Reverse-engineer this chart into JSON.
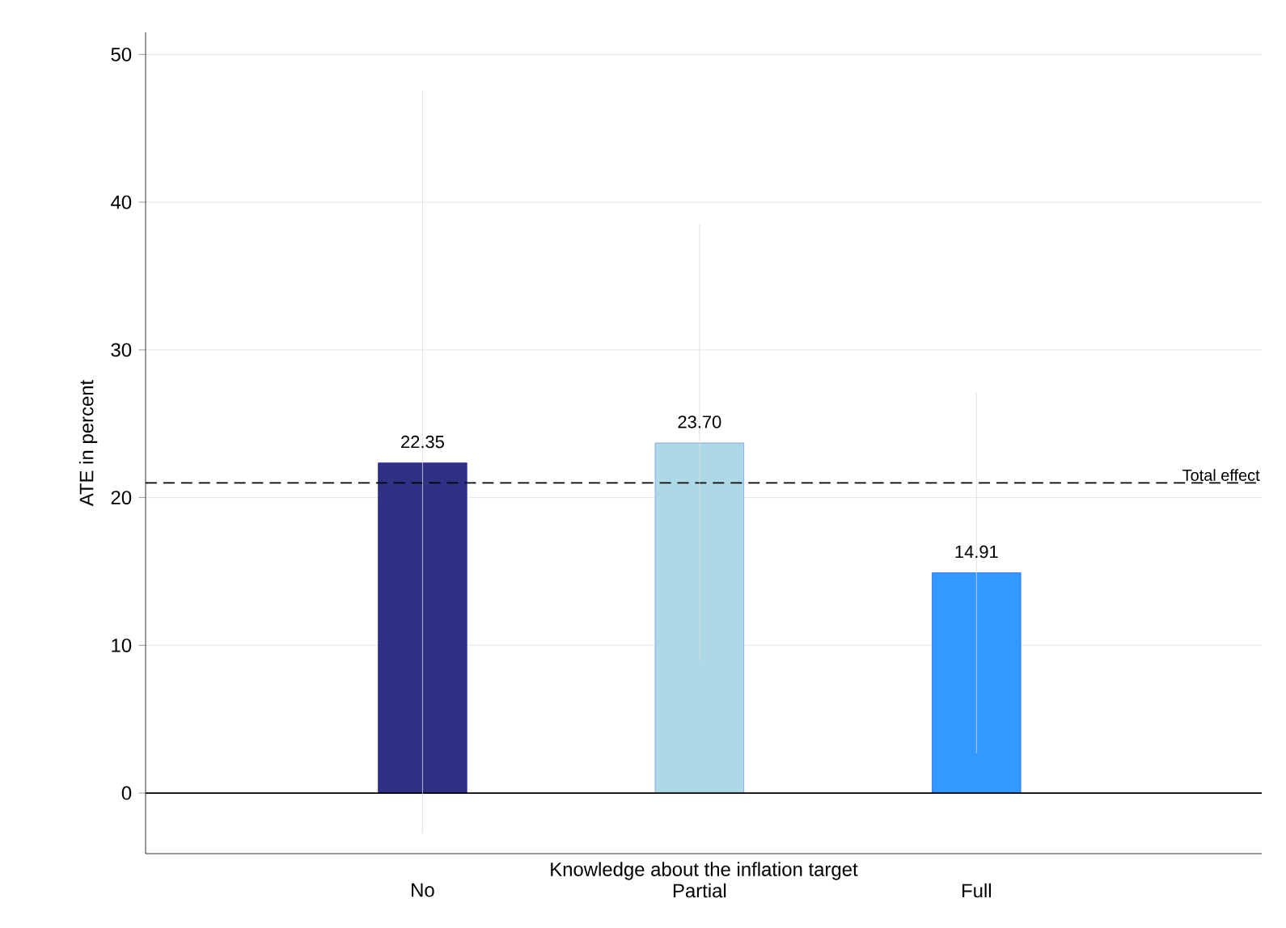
{
  "chart_data": {
    "type": "bar",
    "xlabel": "Knowledge about the inflation target",
    "ylabel": "ATE in percent",
    "categories": [
      "No",
      "Partial",
      "Full"
    ],
    "values": [
      22.35,
      23.7,
      14.91
    ],
    "colors": [
      "#2e3184",
      "#add8e6",
      "#3399ff"
    ],
    "value_labels": [
      "22.35",
      "23.70",
      "14.91"
    ],
    "errors": [
      [
        -2.7,
        47.5
      ],
      [
        9.0,
        38.5
      ],
      [
        2.7,
        27.1
      ]
    ],
    "ylim": [
      -4.1,
      51.5
    ],
    "yticks": [
      0,
      10,
      20,
      30,
      40,
      50
    ],
    "grid": "y",
    "ref_lines": [
      {
        "axis": "y",
        "value": 21.0,
        "label": "Total effect",
        "color": "#000000",
        "line_style": "dashed"
      },
      {
        "axis": "y",
        "value": 0,
        "color": "#000000",
        "line_style": "solid"
      }
    ]
  }
}
